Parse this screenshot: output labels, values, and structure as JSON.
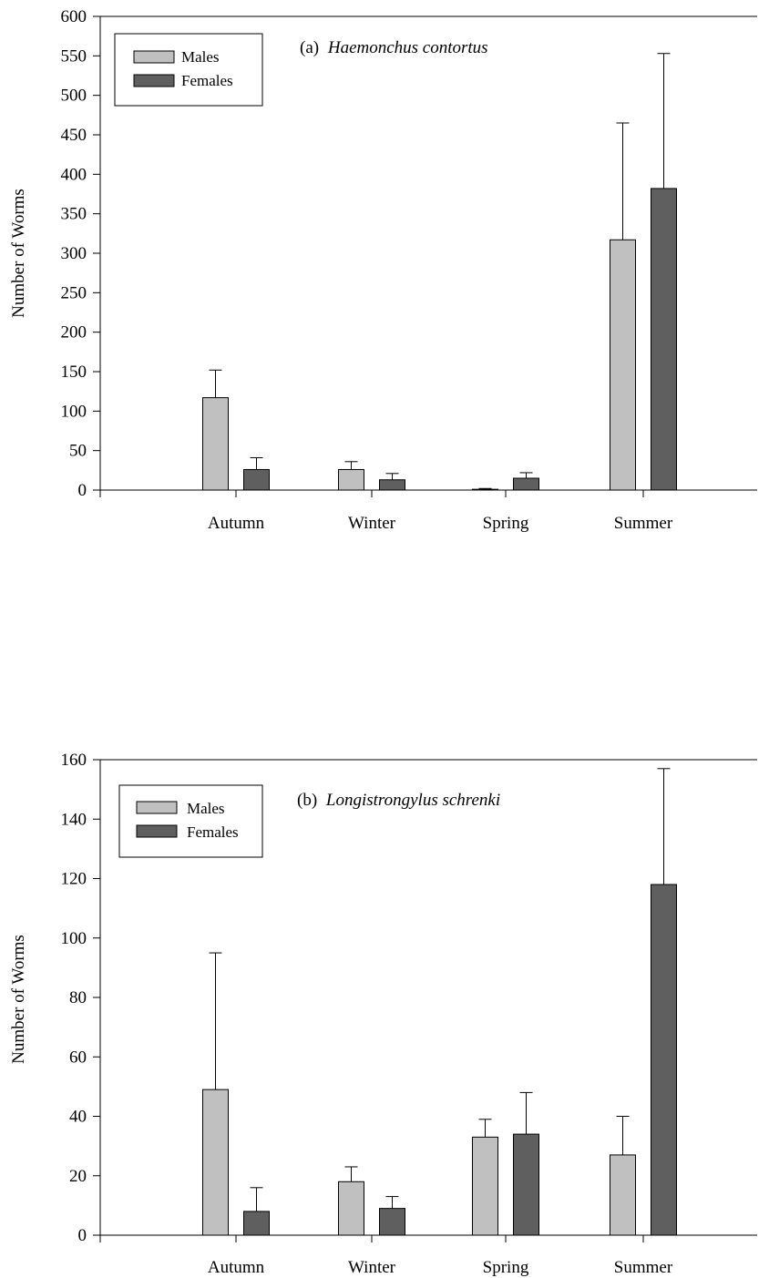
{
  "chart_data": [
    {
      "type": "bar",
      "title_prefix": "(a)",
      "title_species": "Haemonchus contortus",
      "xlabel": "",
      "ylabel": "Number of Worms",
      "categories": [
        "Autumn",
        "Winter",
        "Spring",
        "Summer"
      ],
      "ylim": [
        0,
        600
      ],
      "yticks": [
        0,
        50,
        100,
        150,
        200,
        250,
        300,
        350,
        400,
        450,
        500,
        550,
        600
      ],
      "series": [
        {
          "name": "Males",
          "color": "#c0c0c0",
          "values": [
            117,
            26,
            1,
            317
          ],
          "errors": [
            35,
            10,
            1,
            148
          ]
        },
        {
          "name": "Females",
          "color": "#5f5f5f",
          "values": [
            26,
            13,
            15,
            382
          ],
          "errors": [
            15,
            8,
            7,
            171
          ]
        }
      ],
      "legend_position": "top-left",
      "grid": false
    },
    {
      "type": "bar",
      "title_prefix": "(b)",
      "title_species": "Longistrongylus schrenki",
      "xlabel": "",
      "ylabel": "Number of Worms",
      "categories": [
        "Autumn",
        "Winter",
        "Spring",
        "Summer"
      ],
      "ylim": [
        0,
        160
      ],
      "yticks": [
        0,
        20,
        40,
        60,
        80,
        100,
        120,
        140,
        160
      ],
      "series": [
        {
          "name": "Males",
          "color": "#c0c0c0",
          "values": [
            49,
            18,
            33,
            27
          ],
          "errors": [
            46,
            5,
            6,
            13
          ]
        },
        {
          "name": "Females",
          "color": "#5f5f5f",
          "values": [
            8,
            9,
            34,
            118
          ],
          "errors": [
            8,
            4,
            14,
            39
          ]
        }
      ],
      "legend_position": "top-left",
      "grid": false
    }
  ]
}
